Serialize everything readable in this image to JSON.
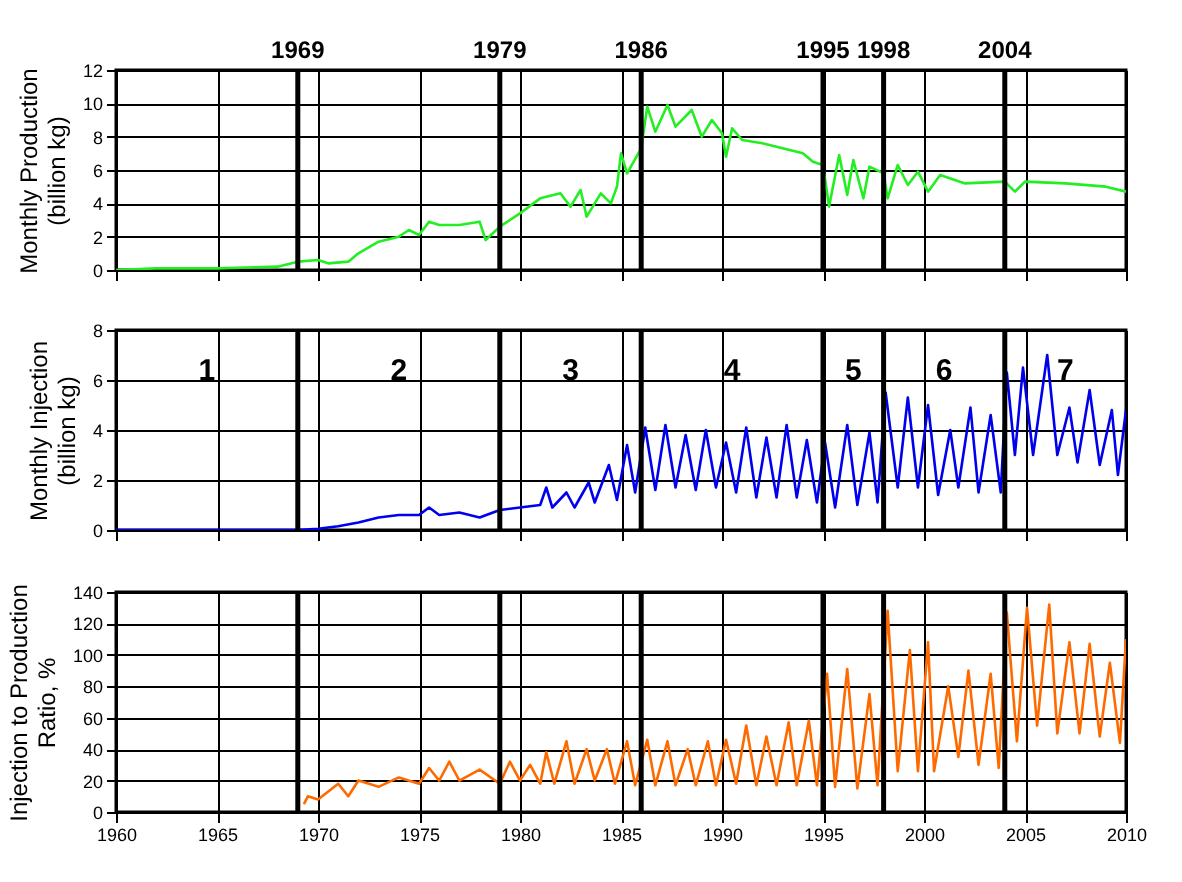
{
  "chart_data": [
    {
      "type": "line",
      "ylabel": "Monthly Production\n(billion kg)",
      "xlim": [
        1960,
        2010
      ],
      "xticks": [
        1960,
        1965,
        1970,
        1975,
        1980,
        1985,
        1990,
        1995,
        2000,
        2005,
        2010
      ],
      "ylim": [
        0,
        12
      ],
      "yticks": [
        0,
        2,
        4,
        6,
        8,
        10,
        12
      ],
      "grid": true,
      "tick_labels": "y",
      "series": [
        {
          "color": "#22ee22",
          "x": [
            1960,
            1962,
            1965,
            1968,
            1969,
            1970,
            1970.5,
            1971.5,
            1972,
            1973,
            1974,
            1974.5,
            1975,
            1975.5,
            1976,
            1977,
            1978,
            1978.3,
            1979,
            1980,
            1981,
            1982,
            1982.5,
            1983,
            1983.3,
            1984,
            1984.5,
            1984.8,
            1985,
            1985.3,
            1986,
            1986.3,
            1986.7,
            1987.3,
            1987.7,
            1988.5,
            1989,
            1989.5,
            1990,
            1990.2,
            1990.5,
            1991,
            1992,
            1993,
            1994,
            1994.5,
            1995,
            1995.3,
            1995.8,
            1996.2,
            1996.5,
            1997,
            1997.3,
            1998,
            1998.2,
            1998.7,
            1999.2,
            1999.7,
            2000.2,
            2000.8,
            2002,
            2004,
            2004.5,
            2005,
            2007,
            2009,
            2010
          ],
          "values": [
            0,
            0.1,
            0.1,
            0.2,
            0.5,
            0.6,
            0.4,
            0.5,
            1.0,
            1.7,
            2.0,
            2.4,
            2.1,
            2.9,
            2.7,
            2.7,
            2.9,
            1.8,
            2.6,
            3.4,
            4.3,
            4.6,
            3.8,
            4.8,
            3.2,
            4.6,
            4.0,
            5.0,
            7.0,
            5.8,
            7.3,
            9.8,
            8.3,
            9.9,
            8.6,
            9.6,
            8.0,
            9.0,
            8.2,
            6.8,
            8.5,
            7.8,
            7.6,
            7.3,
            7.0,
            6.5,
            6.3,
            3.8,
            6.9,
            4.5,
            6.6,
            4.3,
            6.2,
            5.8,
            4.3,
            6.3,
            5.1,
            5.9,
            4.7,
            5.7,
            5.2,
            5.3,
            4.7,
            5.3,
            5.2,
            5.0,
            4.7
          ]
        }
      ],
      "ref_lines": [
        {
          "axis": "x",
          "value": 1969,
          "label": "1969"
        },
        {
          "axis": "x",
          "value": 1979,
          "label": "1979"
        },
        {
          "axis": "x",
          "value": 1986,
          "label": "1986"
        },
        {
          "axis": "x",
          "value": 1995,
          "label": "1995"
        },
        {
          "axis": "x",
          "value": 1998,
          "label": "1998"
        },
        {
          "axis": "x",
          "value": 2004,
          "label": "2004"
        }
      ]
    },
    {
      "type": "line",
      "ylabel": "Monthly Injection\n(billion kg)",
      "xlim": [
        1960,
        2010
      ],
      "xticks": [
        1960,
        1965,
        1970,
        1975,
        1980,
        1985,
        1990,
        1995,
        2000,
        2005,
        2010
      ],
      "ylim": [
        0,
        8
      ],
      "yticks": [
        0,
        2,
        4,
        6,
        8
      ],
      "grid": true,
      "tick_labels": "y",
      "series": [
        {
          "color": "#0000ee",
          "x": [
            1960,
            1969,
            1970,
            1971,
            1972,
            1973,
            1974,
            1975,
            1975.5,
            1976,
            1977,
            1978,
            1979,
            1980,
            1981,
            1981.3,
            1981.6,
            1982.3,
            1982.7,
            1983.4,
            1983.7,
            1984.4,
            1984.8,
            1985.3,
            1985.7,
            1986.2,
            1986.7,
            1987.2,
            1987.7,
            1988.2,
            1988.7,
            1989.2,
            1989.7,
            1990.2,
            1990.7,
            1991.2,
            1991.7,
            1992.2,
            1992.7,
            1993.2,
            1993.7,
            1994.2,
            1994.7,
            1995.1,
            1995.6,
            1996.2,
            1996.7,
            1997.3,
            1997.7,
            1998.1,
            1998.7,
            1999.2,
            1999.7,
            2000.2,
            2000.7,
            2001.3,
            2001.7,
            2002.3,
            2002.7,
            2003.3,
            2003.8,
            2004.1,
            2004.5,
            2004.9,
            2005.4,
            2006.1,
            2006.6,
            2007.2,
            2007.6,
            2008.2,
            2008.7,
            2009.3,
            2009.6,
            2010
          ],
          "values": [
            0,
            0,
            0.05,
            0.15,
            0.3,
            0.5,
            0.6,
            0.6,
            0.9,
            0.6,
            0.7,
            0.5,
            0.8,
            0.9,
            1.0,
            1.7,
            0.9,
            1.5,
            0.9,
            1.9,
            1.1,
            2.6,
            1.2,
            3.4,
            1.5,
            4.1,
            1.6,
            4.2,
            1.7,
            3.8,
            1.6,
            4.0,
            1.7,
            3.5,
            1.5,
            4.1,
            1.3,
            3.7,
            1.3,
            4.2,
            1.3,
            3.6,
            1.1,
            3.5,
            0.9,
            4.2,
            1.0,
            3.9,
            1.1,
            5.5,
            1.7,
            5.3,
            1.7,
            5.0,
            1.4,
            4.0,
            1.7,
            4.9,
            1.5,
            4.6,
            1.5,
            6.3,
            3.0,
            6.5,
            3.0,
            7.0,
            3.0,
            4.9,
            2.7,
            5.6,
            2.6,
            4.8,
            2.2,
            4.8
          ]
        }
      ],
      "ref_lines": [
        {
          "axis": "x",
          "value": 1969
        },
        {
          "axis": "x",
          "value": 1979
        },
        {
          "axis": "x",
          "value": 1986
        },
        {
          "axis": "x",
          "value": 1995
        },
        {
          "axis": "x",
          "value": 1998
        },
        {
          "axis": "x",
          "value": 2004
        }
      ],
      "annotations": [
        "1",
        "2",
        "3",
        "4",
        "5",
        "6",
        "7"
      ]
    },
    {
      "type": "line",
      "ylabel": "Injection to Production\nRatio, %",
      "xlim": [
        1960,
        2010
      ],
      "xticks": [
        1960,
        1965,
        1970,
        1975,
        1980,
        1985,
        1990,
        1995,
        2000,
        2005,
        2010
      ],
      "ylim": [
        0,
        140
      ],
      "yticks": [
        0,
        20,
        40,
        60,
        80,
        100,
        120,
        140
      ],
      "grid": true,
      "series": [
        {
          "color": "#ff6a00",
          "x": [
            1969.3,
            1969.5,
            1970,
            1971,
            1971.5,
            1972,
            1973,
            1974,
            1975,
            1975.5,
            1976,
            1976.5,
            1977,
            1978,
            1979,
            1979.5,
            1980,
            1980.5,
            1981,
            1981.3,
            1981.7,
            1982.3,
            1982.7,
            1983.3,
            1983.7,
            1984.3,
            1984.7,
            1985.3,
            1985.7,
            1986.3,
            1986.7,
            1987.3,
            1987.7,
            1988.3,
            1988.7,
            1989.3,
            1989.7,
            1990.2,
            1990.7,
            1991.2,
            1991.7,
            1992.2,
            1992.7,
            1993.3,
            1993.7,
            1994.3,
            1994.7,
            1995.2,
            1995.6,
            1996.2,
            1996.7,
            1997.3,
            1997.7,
            1998.2,
            1998.7,
            1999.3,
            1999.7,
            2000.2,
            2000.5,
            2001.2,
            2001.7,
            2002.2,
            2002.7,
            2003.3,
            2003.7,
            2004.1,
            2004.6,
            2005.1,
            2005.6,
            2006.2,
            2006.6,
            2007.2,
            2007.7,
            2008.2,
            2008.7,
            2009.2,
            2009.7,
            2010
          ],
          "values": [
            5,
            10,
            8,
            18,
            10,
            20,
            16,
            22,
            18,
            28,
            20,
            32,
            20,
            27,
            18,
            32,
            20,
            30,
            18,
            38,
            18,
            45,
            18,
            40,
            20,
            40,
            18,
            45,
            17,
            46,
            17,
            45,
            17,
            40,
            17,
            45,
            17,
            46,
            18,
            55,
            17,
            48,
            17,
            57,
            17,
            58,
            17,
            88,
            16,
            91,
            15,
            75,
            17,
            128,
            26,
            103,
            26,
            108,
            26,
            80,
            35,
            90,
            30,
            88,
            28,
            127,
            45,
            130,
            55,
            132,
            50,
            108,
            50,
            107,
            48,
            95,
            44,
            110
          ]
        }
      ],
      "ref_lines": [
        {
          "axis": "x",
          "value": 1969
        },
        {
          "axis": "x",
          "value": 1979
        },
        {
          "axis": "x",
          "value": 1986
        },
        {
          "axis": "x",
          "value": 1995
        },
        {
          "axis": "x",
          "value": 1998
        },
        {
          "axis": "x",
          "value": 2004
        }
      ]
    }
  ]
}
